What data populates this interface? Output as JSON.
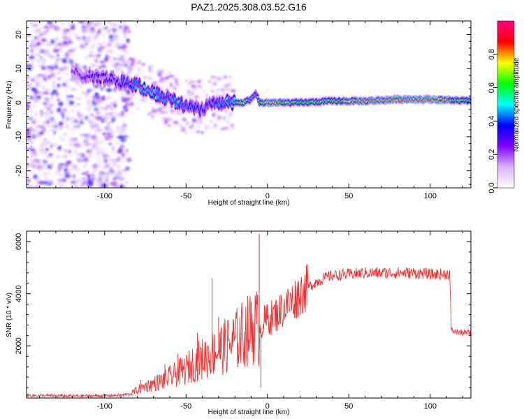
{
  "title": "PAZ1.2025.308.03.52.G16",
  "chart_data": [
    {
      "type": "heatmap",
      "xlabel": "Height of straight line (km)",
      "ylabel": "Frequency (Hz)",
      "xlim": [
        -148,
        125
      ],
      "ylim": [
        -25,
        24
      ],
      "xticks": [
        -100,
        -50,
        0,
        50,
        100
      ],
      "xtick_labels": [
        "-100",
        "-50",
        "0",
        "50",
        "100"
      ],
      "yticks": [
        -20,
        -10,
        0,
        10,
        20
      ],
      "ytick_labels": [
        "-20",
        "-10",
        "0",
        "10",
        "20"
      ],
      "colorbar": {
        "label": "Normalized spectral amplitude",
        "range": [
          0,
          1
        ],
        "ticks": [
          0.0,
          0.2,
          0.4,
          0.6,
          0.8
        ],
        "tick_labels": [
          "0.0",
          "0.2",
          "0.4",
          "0.6",
          "0.8"
        ],
        "colors": [
          "#ffffff",
          "#d9b3ff",
          "#8000ff",
          "#0000ff",
          "#00ffff",
          "#00ff00",
          "#ffff00",
          "#ff0000",
          "#ff0080"
        ]
      },
      "ridge": {
        "x": [
          -120,
          -110,
          -100,
          -95,
          -90,
          -85,
          -80,
          -75,
          -70,
          -65,
          -60,
          -55,
          -50,
          -45,
          -40,
          -35,
          -30,
          -25,
          -20,
          -15,
          -10,
          -7,
          -5,
          0,
          10,
          20,
          40,
          60,
          80,
          100,
          125
        ],
        "y": [
          9,
          8,
          7,
          7,
          6,
          6,
          5,
          4,
          3,
          2,
          1,
          0,
          -1,
          -1,
          -2,
          0,
          0,
          0,
          0,
          0,
          1,
          3,
          0,
          0,
          0,
          0,
          0.5,
          0.5,
          1,
          1,
          0.5
        ],
        "amplitude": [
          0.25,
          0.3,
          0.3,
          0.3,
          0.35,
          0.4,
          0.45,
          0.5,
          0.45,
          0.45,
          0.4,
          0.45,
          0.4,
          0.35,
          0.35,
          0.35,
          0.4,
          0.45,
          0.55,
          0.7,
          0.5,
          0.35,
          0.6,
          0.85,
          0.75,
          0.6,
          0.65,
          0.75,
          0.85,
          0.9,
          0.6
        ]
      },
      "noise_region_x": [
        -148,
        -85
      ]
    },
    {
      "type": "line",
      "xlabel": "Height of straight line (km)",
      "ylabel": "SNR (10 * v/v)",
      "xlim": [
        -148,
        125
      ],
      "ylim": [
        0,
        6400
      ],
      "xticks": [
        -100,
        -50,
        0,
        50,
        100
      ],
      "xtick_labels": [
        "-100",
        "-50",
        "0",
        "50",
        "100"
      ],
      "yticks": [
        2000,
        4000,
        6000
      ],
      "ytick_labels": [
        "2000",
        "4000",
        "6000"
      ],
      "line_color": "#ee3333",
      "x": [
        -148,
        -120,
        -100,
        -90,
        -85,
        -80,
        -75,
        -70,
        -65,
        -60,
        -55,
        -50,
        -45,
        -40,
        -35,
        -30,
        -25,
        -20,
        -15,
        -10,
        -7,
        -5,
        -3,
        0,
        5,
        10,
        15,
        20,
        25,
        30,
        35,
        40,
        50,
        60,
        70,
        80,
        90,
        100,
        110,
        112,
        113,
        115,
        120,
        125
      ],
      "y": [
        100,
        80,
        90,
        110,
        150,
        300,
        450,
        550,
        650,
        800,
        950,
        1100,
        1350,
        1500,
        1700,
        1850,
        2000,
        2200,
        2450,
        2650,
        2800,
        2500,
        2900,
        3000,
        3200,
        3450,
        3700,
        4000,
        4250,
        4450,
        4600,
        4700,
        4750,
        4800,
        4800,
        4800,
        4800,
        4750,
        4750,
        4750,
        2600,
        2550,
        2500,
        2500
      ],
      "spikes": [
        {
          "x": -78,
          "y": 700
        },
        {
          "x": -63,
          "y": 1300
        },
        {
          "x": -55,
          "y": 1700
        },
        {
          "x": -43,
          "y": 2500
        },
        {
          "x": -34,
          "y": 4600
        },
        {
          "x": -30,
          "y": 3100
        },
        {
          "x": -21,
          "y": 3000
        },
        {
          "x": -10,
          "y": 3700
        },
        {
          "x": -5,
          "y": 6300
        },
        {
          "x": -4,
          "y": 400
        },
        {
          "x": 0,
          "y": 3600
        },
        {
          "x": 112,
          "y": 4900
        }
      ]
    }
  ]
}
